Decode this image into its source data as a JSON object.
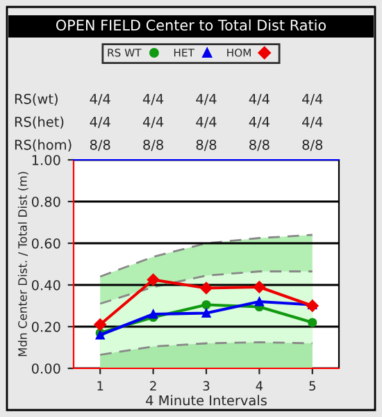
{
  "chart_data": {
    "type": "line",
    "title": "OPEN FIELD Center to Total Dist Ratio",
    "xlabel": "4 Minute Intervals",
    "ylabel": "Mdn Center Dist. / Total Dist (m)",
    "x": [
      1,
      2,
      3,
      4,
      5
    ],
    "xlim": [
      0.5,
      5.5
    ],
    "xticks": [
      1,
      2,
      3,
      4,
      5
    ],
    "ylim": [
      0,
      1
    ],
    "yticks": [
      {
        "value": 0,
        "label": "0.00"
      },
      {
        "value": 0.2,
        "label": "0.20"
      },
      {
        "value": 0.4,
        "label": "0.40"
      },
      {
        "value": 0.6,
        "label": "0.60"
      },
      {
        "value": 0.8,
        "label": "0.80"
      },
      {
        "value": 1,
        "label": "1.00"
      }
    ],
    "grid": "y",
    "legend": "top",
    "line_style": "solid",
    "series": [
      {
        "type": "area",
        "color": "#b3efb3",
        "line_style": "dashed",
        "values": [
          0.44,
          0.535,
          0.6,
          0.625,
          0.64
        ]
      },
      {
        "type": "area",
        "color": "#d9fcd9",
        "line_style": "dashed",
        "values": [
          0.31,
          0.39,
          0.445,
          0.465,
          0.465
        ]
      },
      {
        "type": "area",
        "color": "#a8e8a8",
        "line_style": "dashed",
        "values": [
          0.065,
          0.105,
          0.12,
          0.125,
          0.12
        ]
      },
      {
        "name": "RS WT",
        "color": "#119911",
        "marker": "circle",
        "values": [
          0.17,
          0.245,
          0.305,
          0.295,
          0.22
        ]
      },
      {
        "name": "HET",
        "color": "#0000ee",
        "marker": "triangle",
        "values": [
          0.16,
          0.26,
          0.265,
          0.32,
          0.305
        ]
      },
      {
        "name": "HOM",
        "color": "#ee0000",
        "marker": "diamond",
        "values": [
          0.21,
          0.425,
          0.385,
          0.39,
          0.3
        ]
      }
    ],
    "annotations": [
      "RS(wt)",
      "4/4",
      "4/4",
      "4/4",
      "4/4",
      "4/4",
      "RS(het)",
      "4/4",
      "4/4",
      "4/4",
      "4/4",
      "4/4",
      "RS(hom)",
      "8/8",
      "8/8",
      "8/8",
      "8/8",
      "8/8"
    ]
  }
}
